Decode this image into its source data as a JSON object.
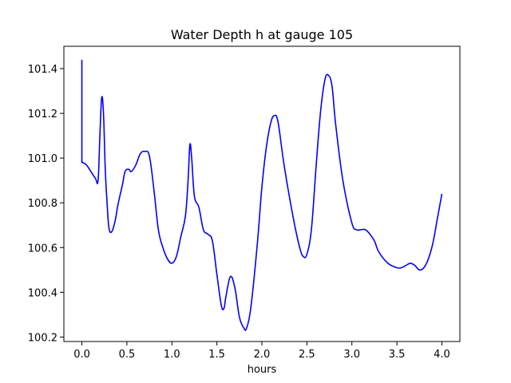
{
  "chart_data": {
    "type": "line",
    "title": "Water Depth h at gauge 105",
    "xlabel": "hours",
    "ylabel": "",
    "xlim": [
      -0.2,
      4.2
    ],
    "ylim": [
      100.18,
      101.5
    ],
    "xticks": [
      0.0,
      0.5,
      1.0,
      1.5,
      2.0,
      2.5,
      3.0,
      3.5,
      4.0
    ],
    "xtick_labels": [
      "0.0",
      "0.5",
      "1.0",
      "1.5",
      "2.0",
      "2.5",
      "3.0",
      "3.5",
      "4.0"
    ],
    "yticks": [
      100.2,
      100.4,
      100.6,
      100.8,
      101.0,
      101.2,
      101.4
    ],
    "ytick_labels": [
      "100.2",
      "100.4",
      "100.6",
      "100.8",
      "101.0",
      "101.2",
      "101.4"
    ],
    "grid": false,
    "series": [
      {
        "color": "#0000ff",
        "x": [
          0.0,
          0.0,
          0.01,
          0.05,
          0.1,
          0.15,
          0.18,
          0.2,
          0.22,
          0.24,
          0.26,
          0.28,
          0.3,
          0.33,
          0.37,
          0.4,
          0.45,
          0.48,
          0.52,
          0.55,
          0.6,
          0.65,
          0.7,
          0.75,
          0.8,
          0.85,
          0.9,
          0.95,
          1.0,
          1.05,
          1.1,
          1.15,
          1.18,
          1.2,
          1.22,
          1.25,
          1.3,
          1.35,
          1.4,
          1.45,
          1.5,
          1.55,
          1.58,
          1.6,
          1.65,
          1.7,
          1.75,
          1.8,
          1.83,
          1.88,
          1.95,
          2.0,
          2.05,
          2.1,
          2.14,
          2.18,
          2.25,
          2.35,
          2.42,
          2.46,
          2.5,
          2.55,
          2.6,
          2.65,
          2.7,
          2.74,
          2.78,
          2.82,
          2.9,
          3.0,
          3.05,
          3.1,
          3.15,
          3.2,
          3.25,
          3.3,
          3.4,
          3.5,
          3.55,
          3.6,
          3.65,
          3.7,
          3.75,
          3.8,
          3.85,
          3.9,
          3.95,
          4.0
        ],
        "y": [
          101.44,
          100.98,
          100.98,
          100.97,
          100.94,
          100.91,
          100.9,
          101.1,
          101.27,
          101.2,
          100.95,
          100.8,
          100.69,
          100.67,
          100.72,
          100.79,
          100.88,
          100.94,
          100.95,
          100.94,
          100.97,
          101.02,
          101.03,
          101.01,
          100.86,
          100.68,
          100.6,
          100.55,
          100.53,
          100.56,
          100.65,
          100.74,
          100.9,
          101.06,
          101.0,
          100.83,
          100.78,
          100.68,
          100.66,
          100.63,
          100.48,
          100.34,
          100.33,
          100.38,
          100.47,
          100.42,
          100.29,
          100.24,
          100.24,
          100.34,
          100.62,
          100.87,
          101.05,
          101.16,
          101.19,
          101.16,
          100.96,
          100.73,
          100.6,
          100.56,
          100.57,
          100.68,
          100.95,
          101.2,
          101.35,
          101.37,
          101.32,
          101.15,
          100.9,
          100.71,
          100.68,
          100.68,
          100.68,
          100.66,
          100.63,
          100.58,
          100.53,
          100.51,
          100.51,
          100.52,
          100.53,
          100.52,
          100.5,
          100.51,
          100.55,
          100.62,
          100.73,
          100.84
        ]
      }
    ]
  }
}
